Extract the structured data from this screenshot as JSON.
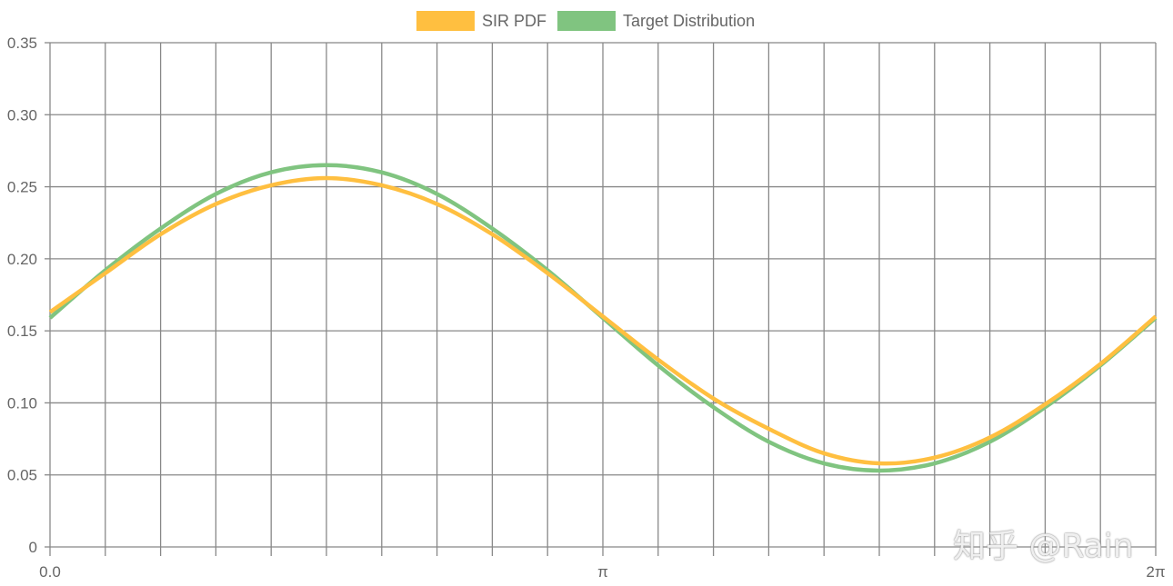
{
  "chart_data": {
    "type": "line",
    "title": "",
    "xlabel": "",
    "ylabel": "",
    "x_range": [
      0,
      6.2832
    ],
    "ylim": [
      0,
      0.35
    ],
    "grid": true,
    "legend_placement": "top",
    "y_ticks": [
      "0",
      "0.05",
      "0.10",
      "0.15",
      "0.20",
      "0.25",
      "0.30",
      "0.35"
    ],
    "y_tick_values": [
      0,
      0.05,
      0.1,
      0.15,
      0.2,
      0.25,
      0.3,
      0.35
    ],
    "x_ticks": [
      {
        "label": "0.0",
        "value": 0
      },
      {
        "label": "π",
        "value": 3.1416
      },
      {
        "label": "2π",
        "value": 6.2832
      }
    ],
    "x_grid_divisions": 20,
    "x": [
      0,
      0.3142,
      0.6283,
      0.9425,
      1.2566,
      1.5708,
      1.885,
      2.1991,
      2.5133,
      2.8274,
      3.1416,
      3.4558,
      3.7699,
      4.0841,
      4.3982,
      4.7124,
      5.0265,
      5.3407,
      5.6549,
      5.969,
      6.2832
    ],
    "series": [
      {
        "name": "SIR PDF",
        "color": "#ffbf40",
        "values": [
          0.163,
          0.19,
          0.217,
          0.238,
          0.251,
          0.256,
          0.251,
          0.238,
          0.217,
          0.19,
          0.16,
          0.13,
          0.103,
          0.082,
          0.065,
          0.058,
          0.062,
          0.076,
          0.099,
          0.127,
          0.16
        ]
      },
      {
        "name": "Target Distribution",
        "color": "#80c480",
        "values": [
          0.159,
          0.192,
          0.221,
          0.245,
          0.26,
          0.265,
          0.26,
          0.245,
          0.221,
          0.192,
          0.159,
          0.126,
          0.097,
          0.073,
          0.058,
          0.053,
          0.058,
          0.073,
          0.097,
          0.126,
          0.159
        ]
      }
    ]
  },
  "watermark": "知乎 @Rain"
}
